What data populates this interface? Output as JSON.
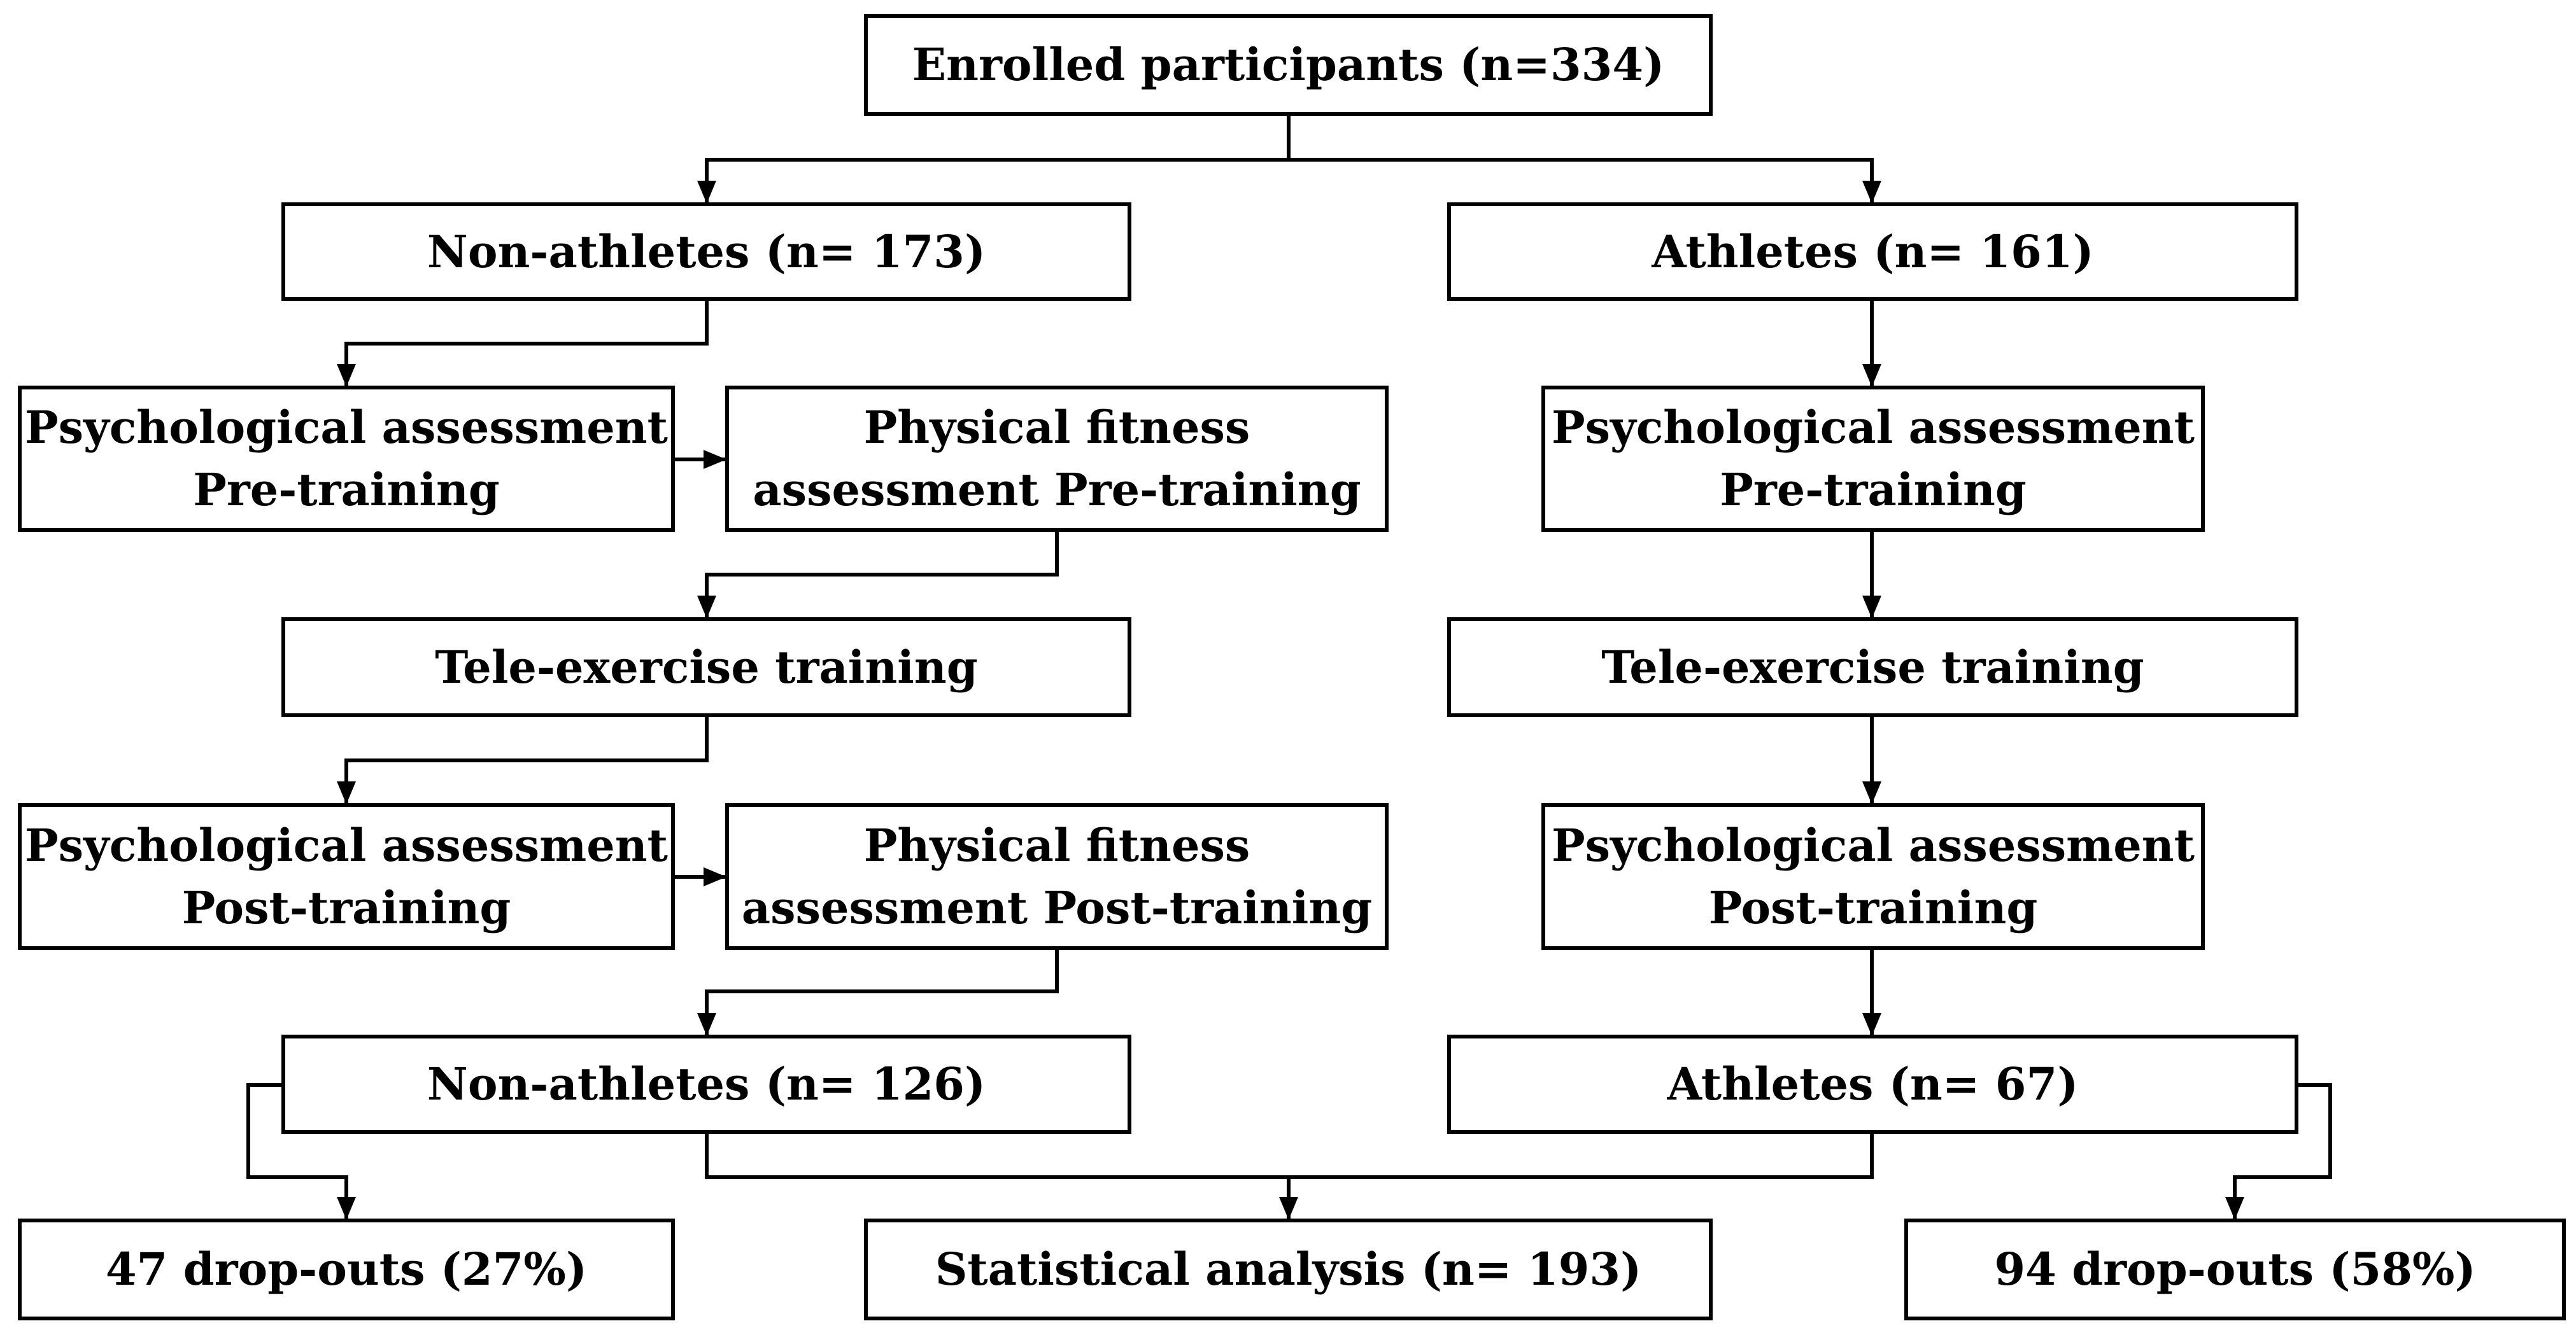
{
  "nodes": {
    "enrolled": "Enrolled participants (n=334)",
    "non_athletes_start": "Non-athletes (n= 173)",
    "athletes_start": "Athletes (n= 161)",
    "na_psych_pre": "Psychological assessment\nPre-training",
    "na_phys_pre": "Physical fitness\nassessment Pre-training",
    "a_psych_pre": "Psychological assessment\nPre-training",
    "na_tele": "Tele-exercise training",
    "a_tele": "Tele-exercise training",
    "na_psych_post": "Psychological assessment\nPost-training",
    "na_phys_post": "Physical fitness\nassessment Post-training",
    "a_psych_post": "Psychological assessment\nPost-training",
    "non_athletes_end": "Non-athletes (n= 126)",
    "athletes_end": "Athletes (n= 67)",
    "na_dropouts": "47 drop-outs (27%)",
    "stat_analysis": "Statistical analysis (n= 193)",
    "a_dropouts": "94 drop-outs (58%)"
  },
  "colors": {
    "stroke": "#000000",
    "background": "#ffffff"
  }
}
